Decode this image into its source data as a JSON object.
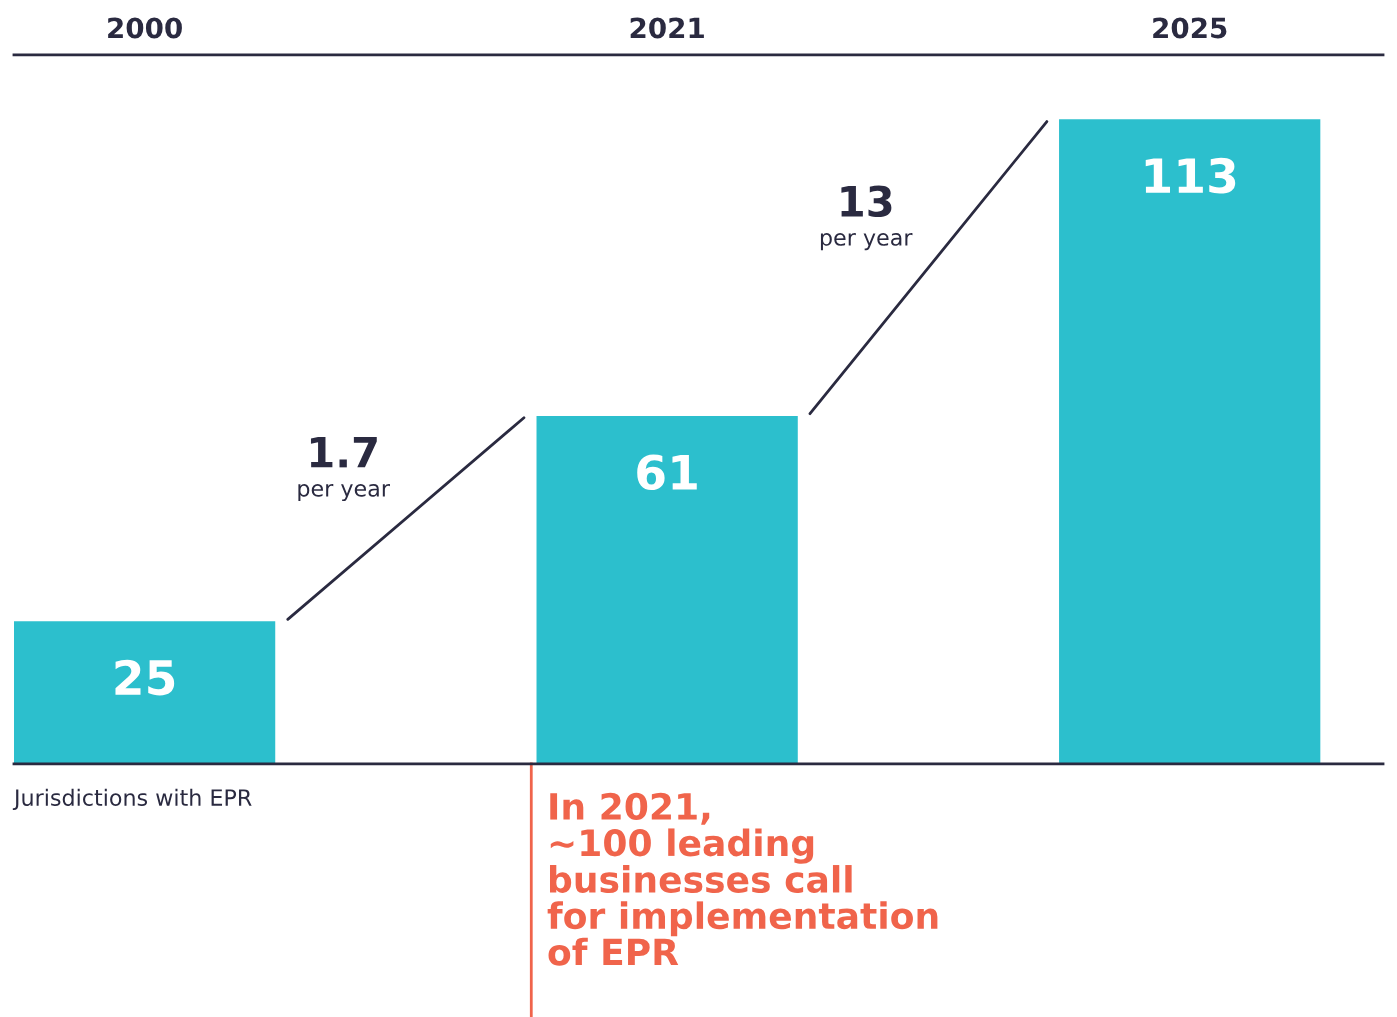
{
  "chart_data": {
    "type": "bar",
    "categories": [
      "2000",
      "2021",
      "2025"
    ],
    "values": [
      25,
      61,
      113
    ],
    "color": "#2cbfcd",
    "data_labels": true,
    "grid": false,
    "annotations": [
      "1.7",
      "per year",
      "13",
      "per year",
      "Jurisdictions with EPR"
    ],
    "ref_lines": [
      {
        "axis": "x",
        "value": "2021",
        "label": "In 2021,\n~100 leading\nbusinesses call\nfor implementation\nof EPR",
        "color": "#f0644b"
      }
    ]
  }
}
